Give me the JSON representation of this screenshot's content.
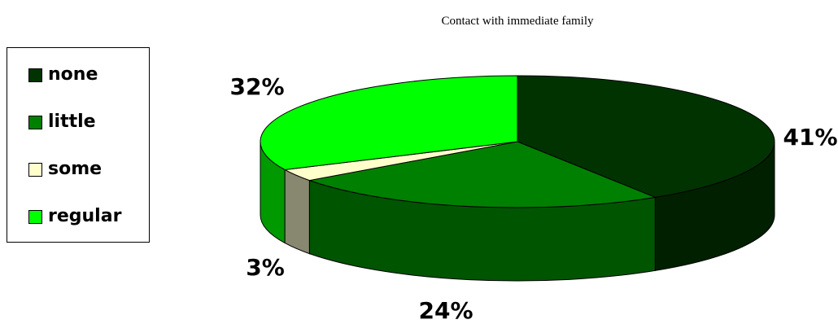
{
  "chart_data": {
    "type": "pie",
    "title": "Contact with immediate family",
    "categories": [
      "none",
      "little",
      "some",
      "regular"
    ],
    "values": [
      41,
      24,
      3,
      32
    ],
    "value_labels": [
      "41%",
      "24%",
      "3%",
      "32%"
    ],
    "colors": [
      "#003300",
      "#008000",
      "#FFFFCC",
      "#00FF00"
    ],
    "side_colors": [
      "#002000",
      "#005500",
      "#888870",
      "#009900"
    ],
    "legend_placement": "left",
    "style": "3d"
  }
}
